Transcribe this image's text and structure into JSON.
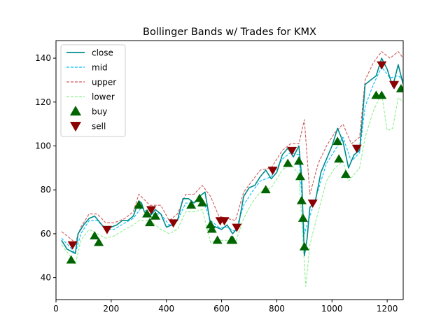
{
  "chart_data": {
    "type": "line",
    "title": "Bollinger Bands w/ Trades for KMX",
    "xlabel": "",
    "ylabel": "",
    "xlim": [
      0,
      1258
    ],
    "ylim": [
      30,
      148
    ],
    "xticks": [
      0,
      200,
      400,
      600,
      800,
      1000,
      1200
    ],
    "yticks": [
      40,
      60,
      80,
      100,
      120,
      140
    ],
    "xtick_labels": [
      "0",
      "200",
      "400",
      "600",
      "800",
      "1000",
      "1200"
    ],
    "ytick_labels": [
      "40",
      "60",
      "80",
      "100",
      "120",
      "140"
    ],
    "grid": false,
    "legend_position": "upper-left",
    "colors": {
      "close": "#008b8b",
      "mid": "#00bfff",
      "upper": "#cd5c5c",
      "lower": "#90ee90",
      "buy": "#006400",
      "sell": "#8b0000"
    },
    "series": [
      {
        "name": "close",
        "style": "solid",
        "points": [
          [
            20,
            57
          ],
          [
            40,
            53
          ],
          [
            55,
            52
          ],
          [
            70,
            51
          ],
          [
            80,
            60
          ],
          [
            100,
            64
          ],
          [
            120,
            67
          ],
          [
            140,
            68
          ],
          [
            160,
            65
          ],
          [
            180,
            62
          ],
          [
            200,
            63
          ],
          [
            220,
            64
          ],
          [
            240,
            66
          ],
          [
            260,
            66
          ],
          [
            280,
            68
          ],
          [
            300,
            75
          ],
          [
            310,
            74
          ],
          [
            320,
            70
          ],
          [
            340,
            68
          ],
          [
            360,
            71
          ],
          [
            380,
            69
          ],
          [
            400,
            63
          ],
          [
            420,
            64
          ],
          [
            440,
            66
          ],
          [
            460,
            76
          ],
          [
            480,
            76
          ],
          [
            500,
            74
          ],
          [
            520,
            77
          ],
          [
            540,
            79
          ],
          [
            560,
            64
          ],
          [
            580,
            63
          ],
          [
            600,
            62
          ],
          [
            620,
            64
          ],
          [
            640,
            60
          ],
          [
            660,
            63
          ],
          [
            680,
            77
          ],
          [
            700,
            81
          ],
          [
            720,
            82
          ],
          [
            740,
            86
          ],
          [
            760,
            89
          ],
          [
            780,
            85
          ],
          [
            800,
            88
          ],
          [
            820,
            96
          ],
          [
            840,
            99
          ],
          [
            860,
            95
          ],
          [
            880,
            100
          ],
          [
            890,
            86
          ],
          [
            900,
            50
          ],
          [
            910,
            58
          ],
          [
            920,
            72
          ],
          [
            940,
            75
          ],
          [
            960,
            88
          ],
          [
            980,
            94
          ],
          [
            1000,
            100
          ],
          [
            1020,
            108
          ],
          [
            1040,
            102
          ],
          [
            1060,
            90
          ],
          [
            1080,
            96
          ],
          [
            1100,
            98
          ],
          [
            1110,
            112
          ],
          [
            1120,
            128
          ],
          [
            1140,
            130
          ],
          [
            1160,
            132
          ],
          [
            1180,
            140
          ],
          [
            1200,
            135
          ],
          [
            1220,
            127
          ],
          [
            1240,
            137
          ],
          [
            1258,
            128
          ]
        ]
      },
      {
        "name": "mid",
        "style": "dashed",
        "points": [
          [
            20,
            58
          ],
          [
            50,
            54
          ],
          [
            70,
            51
          ],
          [
            90,
            60
          ],
          [
            120,
            66
          ],
          [
            150,
            66
          ],
          [
            180,
            62
          ],
          [
            210,
            62
          ],
          [
            250,
            65
          ],
          [
            280,
            67
          ],
          [
            310,
            72
          ],
          [
            340,
            69
          ],
          [
            380,
            69
          ],
          [
            410,
            64
          ],
          [
            440,
            66
          ],
          [
            470,
            74
          ],
          [
            500,
            74
          ],
          [
            530,
            76
          ],
          [
            560,
            66
          ],
          [
            590,
            63
          ],
          [
            620,
            63
          ],
          [
            650,
            61
          ],
          [
            680,
            73
          ],
          [
            710,
            79
          ],
          [
            740,
            84
          ],
          [
            780,
            86
          ],
          [
            820,
            94
          ],
          [
            850,
            97
          ],
          [
            880,
            96
          ],
          [
            900,
            60
          ],
          [
            920,
            68
          ],
          [
            950,
            80
          ],
          [
            980,
            92
          ],
          [
            1010,
            98
          ],
          [
            1040,
            104
          ],
          [
            1070,
            93
          ],
          [
            1100,
            97
          ],
          [
            1120,
            118
          ],
          [
            1150,
            128
          ],
          [
            1180,
            136
          ],
          [
            1210,
            131
          ],
          [
            1240,
            132
          ],
          [
            1258,
            130
          ]
        ]
      },
      {
        "name": "upper",
        "style": "dashed",
        "points": [
          [
            20,
            61
          ],
          [
            50,
            58
          ],
          [
            70,
            56
          ],
          [
            90,
            63
          ],
          [
            120,
            69
          ],
          [
            150,
            69
          ],
          [
            180,
            65
          ],
          [
            210,
            65
          ],
          [
            250,
            67
          ],
          [
            280,
            70
          ],
          [
            300,
            78
          ],
          [
            340,
            73
          ],
          [
            380,
            73
          ],
          [
            410,
            66
          ],
          [
            440,
            69
          ],
          [
            470,
            78
          ],
          [
            500,
            78
          ],
          [
            530,
            82
          ],
          [
            560,
            77
          ],
          [
            590,
            68
          ],
          [
            620,
            67
          ],
          [
            650,
            66
          ],
          [
            680,
            79
          ],
          [
            710,
            84
          ],
          [
            740,
            89
          ],
          [
            780,
            90
          ],
          [
            820,
            98
          ],
          [
            850,
            101
          ],
          [
            880,
            101
          ],
          [
            900,
            112
          ],
          [
            920,
            78
          ],
          [
            950,
            92
          ],
          [
            980,
            100
          ],
          [
            1010,
            106
          ],
          [
            1040,
            110
          ],
          [
            1070,
            101
          ],
          [
            1100,
            104
          ],
          [
            1120,
            130
          ],
          [
            1150,
            138
          ],
          [
            1180,
            143
          ],
          [
            1210,
            140
          ],
          [
            1240,
            143
          ],
          [
            1258,
            140
          ]
        ]
      },
      {
        "name": "lower",
        "style": "dashed",
        "points": [
          [
            20,
            55
          ],
          [
            50,
            50
          ],
          [
            70,
            46
          ],
          [
            90,
            57
          ],
          [
            120,
            62
          ],
          [
            150,
            60
          ],
          [
            180,
            58
          ],
          [
            210,
            59
          ],
          [
            250,
            62
          ],
          [
            280,
            64
          ],
          [
            300,
            66
          ],
          [
            340,
            66
          ],
          [
            380,
            62
          ],
          [
            410,
            60
          ],
          [
            440,
            62
          ],
          [
            470,
            70
          ],
          [
            500,
            70
          ],
          [
            530,
            71
          ],
          [
            560,
            56
          ],
          [
            590,
            57
          ],
          [
            620,
            57
          ],
          [
            650,
            56
          ],
          [
            680,
            67
          ],
          [
            710,
            74
          ],
          [
            740,
            79
          ],
          [
            780,
            81
          ],
          [
            820,
            89
          ],
          [
            850,
            92
          ],
          [
            880,
            87
          ],
          [
            905,
            36
          ],
          [
            920,
            55
          ],
          [
            950,
            70
          ],
          [
            980,
            84
          ],
          [
            1010,
            90
          ],
          [
            1040,
            93
          ],
          [
            1060,
            84
          ],
          [
            1100,
            90
          ],
          [
            1120,
            104
          ],
          [
            1150,
            116
          ],
          [
            1180,
            124
          ],
          [
            1200,
            107
          ],
          [
            1220,
            108
          ],
          [
            1240,
            122
          ],
          [
            1258,
            120
          ]
        ]
      }
    ],
    "buy_points": [
      [
        55,
        48
      ],
      [
        140,
        59
      ],
      [
        155,
        56
      ],
      [
        300,
        73
      ],
      [
        330,
        69
      ],
      [
        340,
        65
      ],
      [
        360,
        68
      ],
      [
        490,
        73
      ],
      [
        520,
        76
      ],
      [
        530,
        74
      ],
      [
        560,
        64
      ],
      [
        565,
        62
      ],
      [
        585,
        57
      ],
      [
        635,
        57
      ],
      [
        640,
        57
      ],
      [
        760,
        80
      ],
      [
        840,
        92
      ],
      [
        880,
        93
      ],
      [
        885,
        86
      ],
      [
        890,
        75
      ],
      [
        895,
        67
      ],
      [
        900,
        54
      ],
      [
        1020,
        102
      ],
      [
        1025,
        94
      ],
      [
        1050,
        87
      ],
      [
        1160,
        123
      ],
      [
        1180,
        123
      ],
      [
        1250,
        126
      ]
    ],
    "sell_points": [
      [
        60,
        55
      ],
      [
        185,
        62
      ],
      [
        345,
        71
      ],
      [
        425,
        65
      ],
      [
        595,
        66
      ],
      [
        610,
        66
      ],
      [
        655,
        63
      ],
      [
        785,
        89
      ],
      [
        855,
        98
      ],
      [
        930,
        74
      ],
      [
        1090,
        99
      ],
      [
        1180,
        137
      ],
      [
        1225,
        128
      ]
    ],
    "legend": [
      {
        "label": "close",
        "kind": "line"
      },
      {
        "label": "mid",
        "kind": "dash"
      },
      {
        "label": "upper",
        "kind": "dash"
      },
      {
        "label": "lower",
        "kind": "dash"
      },
      {
        "label": "buy",
        "kind": "marker-up"
      },
      {
        "label": "sell",
        "kind": "marker-down"
      }
    ]
  }
}
